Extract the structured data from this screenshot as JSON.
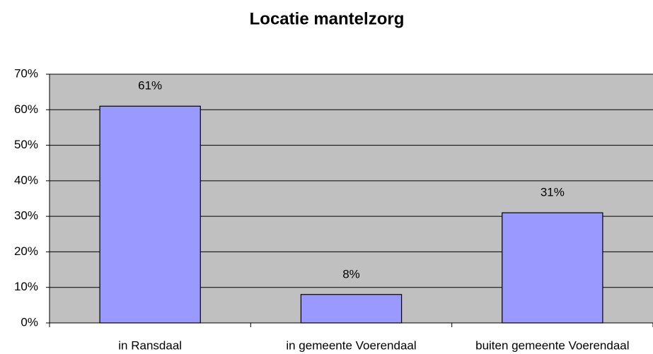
{
  "chart_data": {
    "type": "bar",
    "title": "Locatie mantelzorg",
    "categories": [
      "in Ransdaal",
      "in gemeente Voerendaal",
      "buiten gemeente Voerendaal"
    ],
    "values": [
      61,
      8,
      31
    ],
    "value_labels": [
      "61%",
      "8%",
      "31%"
    ],
    "color": "#9999ff",
    "ylim": [
      0,
      70
    ],
    "yticks": [
      {
        "value": 0,
        "label": "0%"
      },
      {
        "value": 10,
        "label": "10%"
      },
      {
        "value": 20,
        "label": "20%"
      },
      {
        "value": 30,
        "label": "30%"
      },
      {
        "value": 40,
        "label": "40%"
      },
      {
        "value": 50,
        "label": "50%"
      },
      {
        "value": 60,
        "label": "60%"
      },
      {
        "value": 70,
        "label": "70%"
      }
    ],
    "grid": true
  }
}
